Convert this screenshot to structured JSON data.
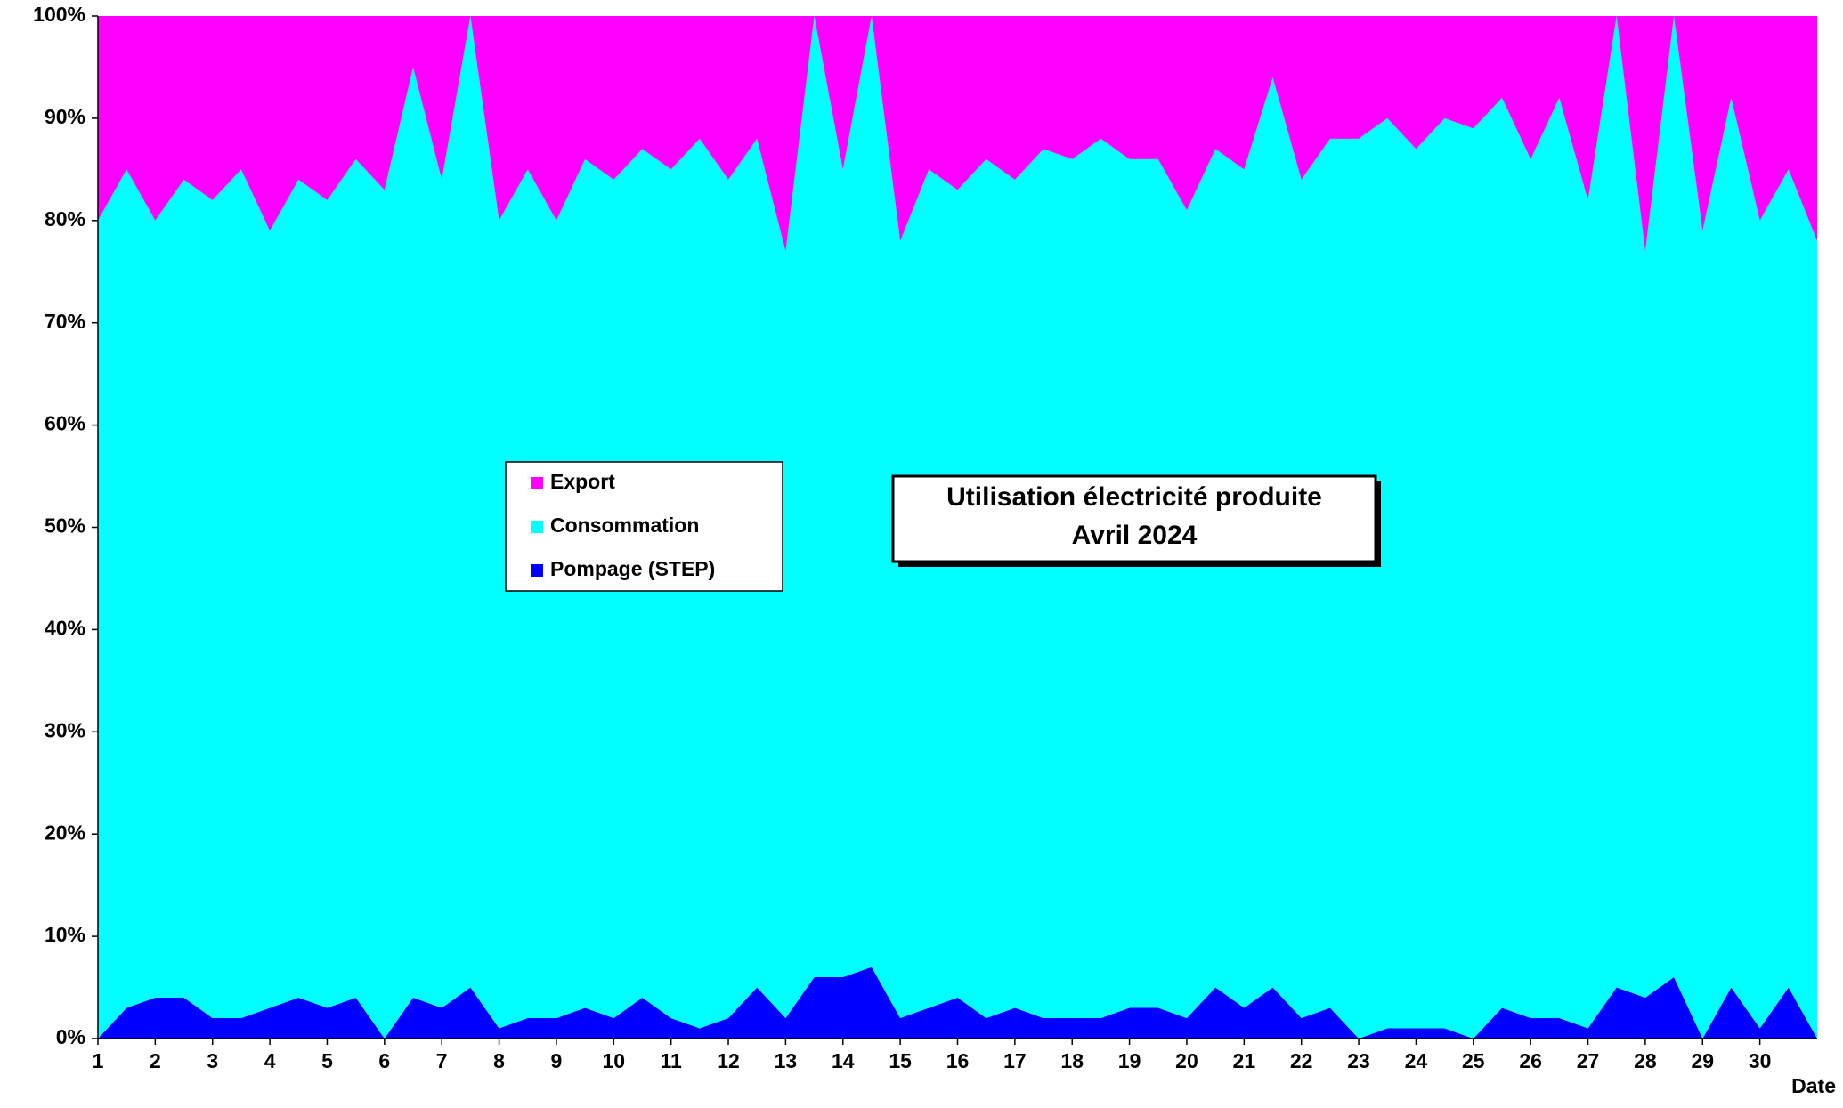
{
  "chart_data": {
    "type": "stacked_area",
    "title": "Utilisation électricité produite",
    "subtitle": "Avril 2024",
    "x_label": "Date",
    "x": [
      1,
      1.5,
      2,
      2.5,
      3,
      3.5,
      4,
      4.5,
      5,
      5.5,
      6,
      6.5,
      7,
      7.5,
      8,
      8.5,
      9,
      9.5,
      10,
      10.5,
      11,
      11.5,
      12,
      12.5,
      13,
      13.5,
      14,
      14.5,
      15,
      15.5,
      16,
      16.5,
      17,
      17.5,
      18,
      18.5,
      19,
      19.5,
      20,
      20.5,
      21,
      21.5,
      22,
      22.5,
      23,
      23.5,
      24,
      24.5,
      25,
      25.5,
      26,
      26.5,
      27,
      27.5,
      28,
      28.5,
      29,
      29.5,
      30,
      30.5,
      31
    ],
    "series": [
      {
        "name": "Pompage (STEP)",
        "color": "#0000ff",
        "values": [
          0,
          3,
          4,
          4,
          2,
          2,
          3,
          4,
          3,
          4,
          0,
          4,
          3,
          5,
          1,
          2,
          2,
          3,
          2,
          4,
          2,
          1,
          2,
          5,
          2,
          6,
          6,
          7,
          2,
          3,
          4,
          2,
          3,
          2,
          2,
          2,
          3,
          3,
          2,
          5,
          3,
          5,
          2,
          3,
          0,
          1,
          1,
          1,
          0,
          3,
          2,
          2,
          1,
          5,
          4,
          6,
          0,
          5,
          1,
          5,
          0
        ]
      },
      {
        "name": "Consommation",
        "color": "#00ffff",
        "values": [
          80,
          82,
          76,
          80,
          80,
          83,
          76,
          80,
          79,
          82,
          83,
          91,
          81,
          95,
          79,
          83,
          78,
          83,
          82,
          83,
          83,
          87,
          82,
          83,
          75,
          94,
          79,
          93,
          76,
          82,
          79,
          84,
          81,
          85,
          84,
          86,
          83,
          83,
          79,
          82,
          82,
          89,
          82,
          85,
          88,
          89,
          86,
          89,
          89,
          89,
          84,
          90,
          81,
          95,
          73,
          94,
          79,
          87,
          79,
          80,
          78
        ]
      },
      {
        "name": "Export",
        "color": "#ff00ff",
        "values": [
          20,
          15,
          20,
          16,
          18,
          15,
          21,
          16,
          18,
          14,
          17,
          5,
          16,
          0,
          20,
          15,
          20,
          14,
          16,
          13,
          15,
          12,
          16,
          12,
          23,
          0,
          15,
          0,
          22,
          15,
          17,
          14,
          16,
          13,
          14,
          12,
          14,
          14,
          19,
          13,
          15,
          6,
          16,
          12,
          12,
          10,
          13,
          10,
          11,
          8,
          14,
          8,
          18,
          0,
          23,
          0,
          21,
          8,
          20,
          15,
          22
        ]
      }
    ],
    "xlim": [
      1,
      31
    ],
    "xticks": [
      1,
      2,
      3,
      4,
      5,
      6,
      7,
      8,
      9,
      10,
      11,
      12,
      13,
      14,
      15,
      16,
      17,
      18,
      19,
      20,
      21,
      22,
      23,
      24,
      25,
      26,
      27,
      28,
      29,
      30
    ],
    "ylim": [
      0,
      100
    ],
    "yticks": [
      {
        "value": 0,
        "label": "0%"
      },
      {
        "value": 10,
        "label": "10%"
      },
      {
        "value": 20,
        "label": "20%"
      },
      {
        "value": 30,
        "label": "30%"
      },
      {
        "value": 40,
        "label": "40%"
      },
      {
        "value": 50,
        "label": "50%"
      },
      {
        "value": 60,
        "label": "60%"
      },
      {
        "value": 70,
        "label": "70%"
      },
      {
        "value": 80,
        "label": "80%"
      },
      {
        "value": 90,
        "label": "90%"
      },
      {
        "value": 100,
        "label": "100%"
      }
    ]
  }
}
